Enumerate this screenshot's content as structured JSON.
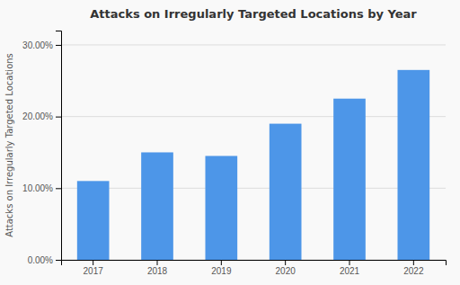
{
  "chart_data": {
    "type": "bar",
    "title": "Attacks on Irregularly Targeted Locations by Year",
    "ylabel": "Attacks on Irregularly Targeted Locations",
    "categories": [
      "2017",
      "2018",
      "2019",
      "2020",
      "2021",
      "2022"
    ],
    "values": [
      0.11,
      0.15,
      0.145,
      0.19,
      0.225,
      0.265
    ],
    "color": "#4d96e8",
    "ylim": [
      0,
      0.32
    ],
    "yticks": [
      {
        "value": 0.0,
        "label": "0.00%"
      },
      {
        "value": 0.1,
        "label": "10.00%"
      },
      {
        "value": 0.2,
        "label": "20.00%"
      },
      {
        "value": 0.3,
        "label": "30.00%"
      }
    ],
    "grid": true
  }
}
